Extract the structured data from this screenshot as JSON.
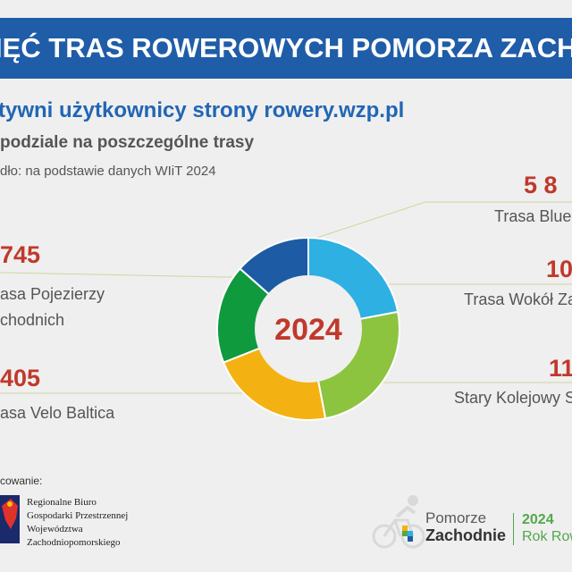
{
  "header": {
    "banner": "IĘĆ TRAS ROWEROWYCH POMORZA ZACHODNIEGO",
    "title": "tywni użytkownicy strony rowery.wzp.pl",
    "subtitle": "podziale na poszczególne trasy",
    "source": "dło: na podstawie danych WIiT 2024"
  },
  "chart_data": {
    "type": "pie",
    "center_label": "2024",
    "slices": [
      {
        "label_lines": [
          "Trasa Blue"
        ],
        "value_text": "5 8",
        "color": "#2eb0e2",
        "share": 0.22
      },
      {
        "label_lines": [
          "Trasa Wokół Za"
        ],
        "value_text": "10",
        "color": "#8cc43f",
        "share": 0.25
      },
      {
        "label_lines": [
          "Stary Kolejowy S"
        ],
        "value_text": "11",
        "color": "#f4b112",
        "share": 0.22
      },
      {
        "label_lines": [
          "asa Velo Baltica"
        ],
        "value_text": "405",
        "color": "#0f9a3e",
        "share": 0.175
      },
      {
        "label_lines": [
          "asa Pojezierzy",
          "chodnich"
        ],
        "value_text": "745",
        "color": "#1d5ca4",
        "share": 0.135
      }
    ]
  },
  "footer": {
    "funded_by": "cowanie:",
    "agency_lines": [
      "Regionalne Biuro",
      "Gospodarki Przestrzennej",
      "Województwa",
      "Zachodniopomorskiego"
    ],
    "brand_line1": "Pomorze",
    "brand_line2": "Zachodnie",
    "year_line1": "2024",
    "year_line2": "Rok Rowe",
    "colors": {
      "brand_green": "#52a84a",
      "banner_blue": "#1f5da8",
      "value_red": "#c0392b"
    },
    "icons": [
      "regional-emblem-icon",
      "cyclist-logo-icon"
    ]
  }
}
